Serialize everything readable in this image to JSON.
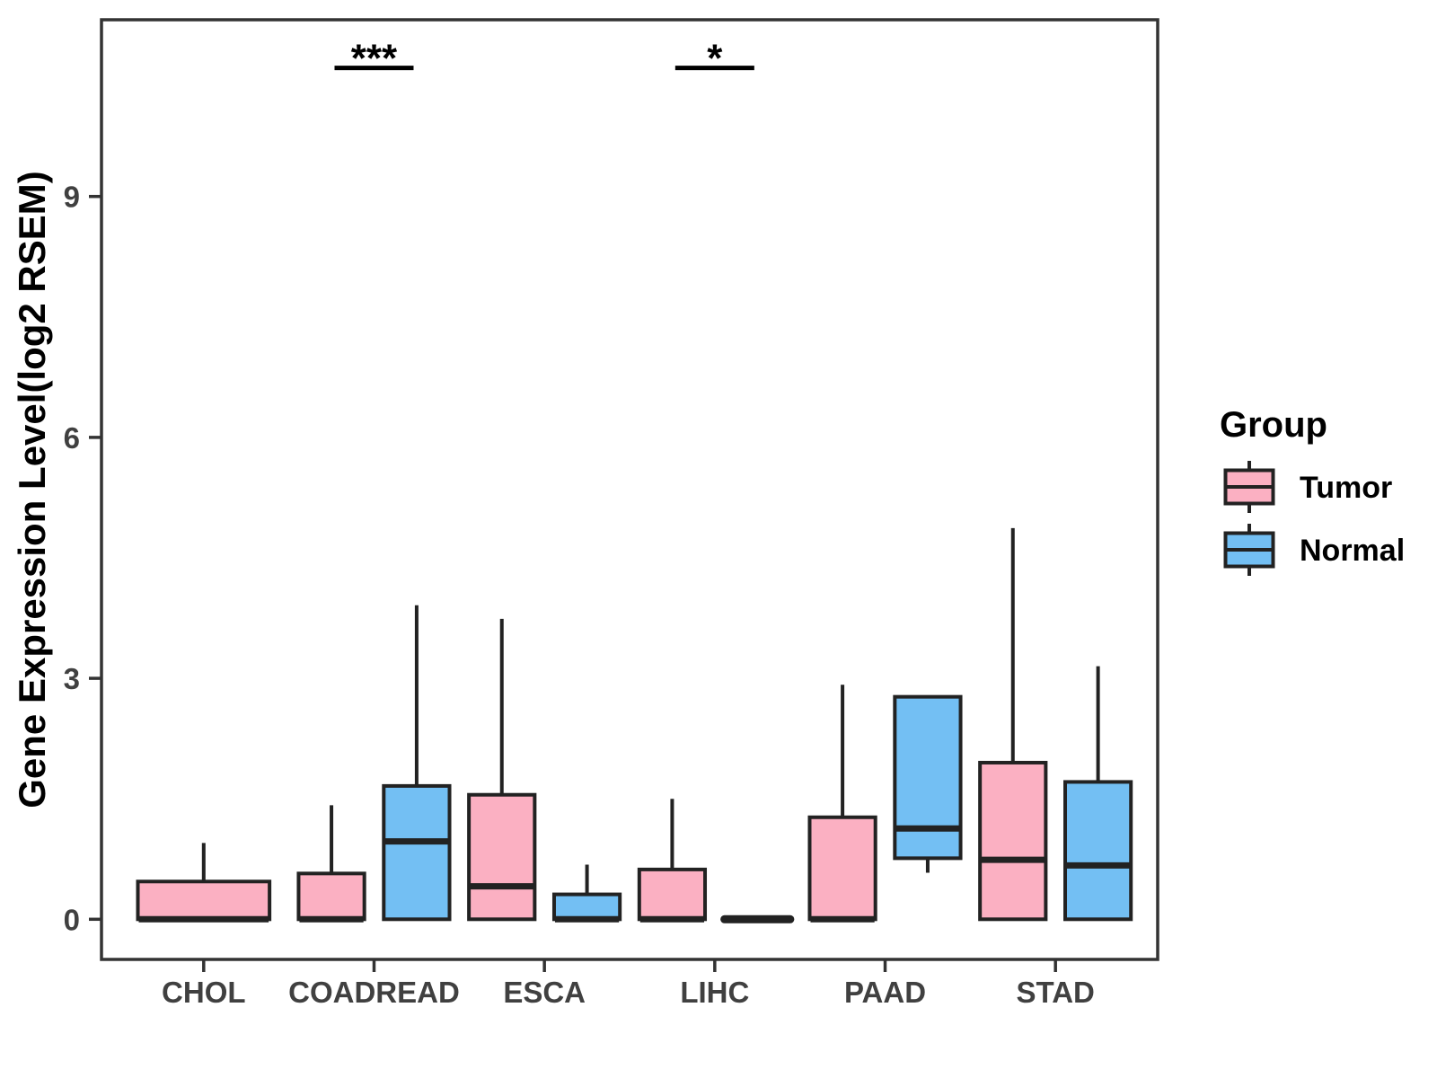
{
  "figure": {
    "background": "#FFFFFF"
  },
  "chart_data": {
    "type": "boxplot",
    "title": "",
    "xlabel": "",
    "ylabel": "Gene Expression Level(log2 RSEM)",
    "categories": [
      "CHOL",
      "COADREAD",
      "ESCA",
      "LIHC",
      "PAAD",
      "STAD"
    ],
    "yticks": [
      0,
      3,
      6,
      9
    ],
    "ylim": [
      -0.5,
      11.2
    ],
    "grid": "off",
    "legend": {
      "title": "Group",
      "position": "right",
      "entries": [
        {
          "label": "Tumor",
          "color": "#FBB0C2"
        },
        {
          "label": "Normal",
          "color": "#73BFF3"
        }
      ]
    },
    "series": [
      {
        "category": "CHOL",
        "group": "Tumor",
        "whisker_low": 0,
        "q1": 0,
        "median": 0,
        "q3": 0.47,
        "whisker_high": 0.95
      },
      {
        "category": "COADREAD",
        "group": "Tumor",
        "whisker_low": 0,
        "q1": 0,
        "median": 0,
        "q3": 0.57,
        "whisker_high": 1.42
      },
      {
        "category": "COADREAD",
        "group": "Normal",
        "whisker_low": 0,
        "q1": 0,
        "median": 0.97,
        "q3": 1.66,
        "whisker_high": 3.91
      },
      {
        "category": "ESCA",
        "group": "Tumor",
        "whisker_low": 0,
        "q1": 0,
        "median": 0.41,
        "q3": 1.55,
        "whisker_high": 3.74
      },
      {
        "category": "ESCA",
        "group": "Normal",
        "whisker_low": 0,
        "q1": 0,
        "median": 0,
        "q3": 0.31,
        "whisker_high": 0.68
      },
      {
        "category": "LIHC",
        "group": "Tumor",
        "whisker_low": 0,
        "q1": 0,
        "median": 0,
        "q3": 0.62,
        "whisker_high": 1.5
      },
      {
        "category": "LIHC",
        "group": "Normal",
        "whisker_low": 0,
        "q1": 0,
        "median": 0,
        "q3": 0,
        "whisker_high": 0
      },
      {
        "category": "PAAD",
        "group": "Tumor",
        "whisker_low": 0,
        "q1": 0,
        "median": 0,
        "q3": 1.27,
        "whisker_high": 2.92
      },
      {
        "category": "PAAD",
        "group": "Normal",
        "whisker_low": 0.58,
        "q1": 0.76,
        "median": 1.13,
        "q3": 2.77,
        "whisker_high": 2.77
      },
      {
        "category": "STAD",
        "group": "Tumor",
        "whisker_low": 0,
        "q1": 0,
        "median": 0.74,
        "q3": 1.95,
        "whisker_high": 4.87
      },
      {
        "category": "STAD",
        "group": "Normal",
        "whisker_low": 0,
        "q1": 0,
        "median": 0.67,
        "q3": 1.71,
        "whisker_high": 3.15
      }
    ],
    "annotations": [
      {
        "category": "COADREAD",
        "text": "***",
        "y": 10.6
      },
      {
        "category": "LIHC",
        "text": "*",
        "y": 10.6
      }
    ]
  },
  "style": {
    "tumor_fill": "#FBB0C2",
    "normal_fill": "#73BFF3",
    "box_border": "#222222",
    "panel_border": "#333333",
    "tick_color": "#333333",
    "tick_label_color": "#404040",
    "text_color": "#000000"
  }
}
